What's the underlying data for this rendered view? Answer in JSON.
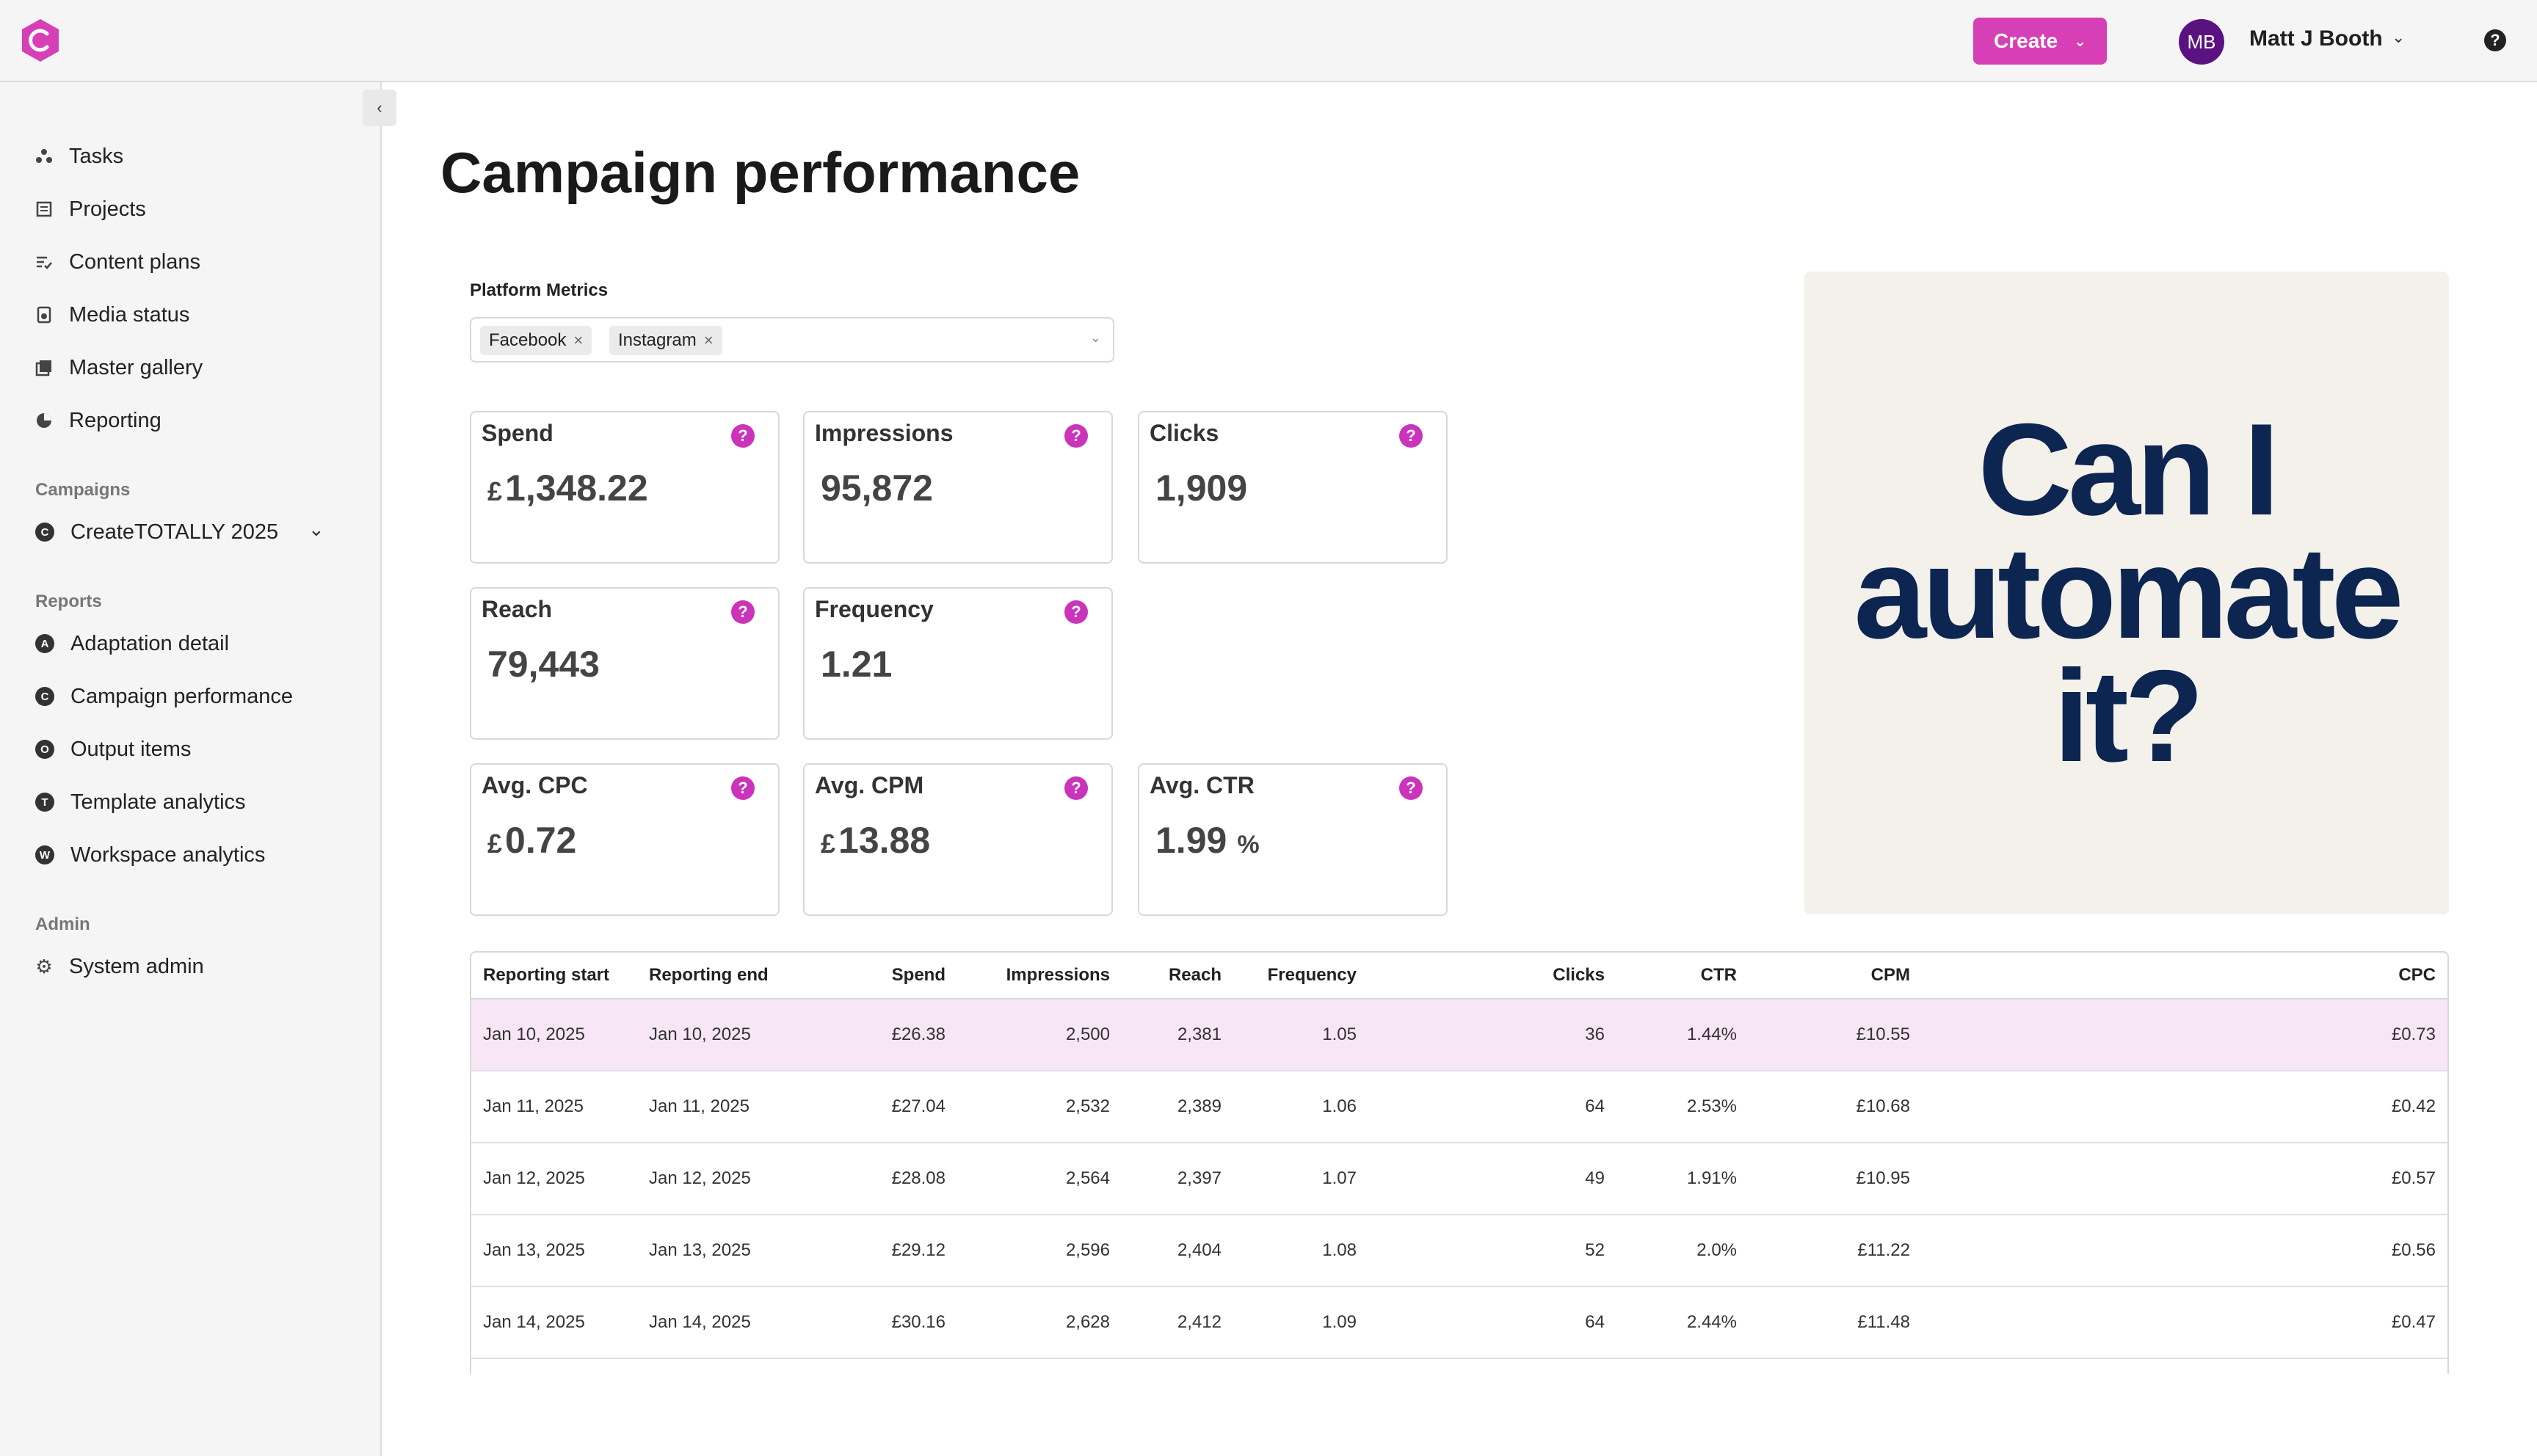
{
  "header": {
    "create_label": "Create",
    "user_initials": "MB",
    "user_name": "Matt J Booth"
  },
  "sidebar": {
    "items": [
      {
        "label": "Tasks",
        "icon": "tasks-icon"
      },
      {
        "label": "Projects",
        "icon": "projects-icon"
      },
      {
        "label": "Content plans",
        "icon": "content-plans-icon"
      },
      {
        "label": "Media status",
        "icon": "media-status-icon"
      },
      {
        "label": "Master gallery",
        "icon": "gallery-icon"
      },
      {
        "label": "Reporting",
        "icon": "reporting-icon"
      }
    ],
    "campaigns_label": "Campaigns",
    "campaign": {
      "letter": "C",
      "label": "CreateTOTALLY 2025"
    },
    "reports_label": "Reports",
    "reports": [
      {
        "letter": "A",
        "label": "Adaptation detail"
      },
      {
        "letter": "C",
        "label": "Campaign performance"
      },
      {
        "letter": "O",
        "label": "Output items"
      },
      {
        "letter": "T",
        "label": "Template analytics"
      },
      {
        "letter": "W",
        "label": "Workspace analytics"
      }
    ],
    "admin_label": "Admin",
    "admin_item": {
      "label": "System admin",
      "icon": "gear-icon"
    }
  },
  "main": {
    "title": "Campaign performance",
    "platform_metrics_label": "Platform Metrics",
    "platforms": [
      "Facebook",
      "Instagram"
    ],
    "metrics": [
      {
        "title": "Spend",
        "currency": "£",
        "value": "1,348.22",
        "suffix": ""
      },
      {
        "title": "Impressions",
        "currency": "",
        "value": "95,872",
        "suffix": ""
      },
      {
        "title": "Clicks",
        "currency": "",
        "value": "1,909",
        "suffix": ""
      },
      {
        "title": "Reach",
        "currency": "",
        "value": "79,443",
        "suffix": ""
      },
      {
        "title": "Frequency",
        "currency": "",
        "value": "1.21",
        "suffix": ""
      },
      {
        "title": "Avg. CPC",
        "currency": "£",
        "value": "0.72",
        "suffix": ""
      },
      {
        "title": "Avg. CPM",
        "currency": "£",
        "value": "13.88",
        "suffix": ""
      },
      {
        "title": "Avg. CTR",
        "currency": "",
        "value": "1.99",
        "suffix": "%"
      }
    ],
    "promo": {
      "lines": [
        "Can I",
        "automate",
        "it?"
      ]
    }
  },
  "table": {
    "headers": [
      "Reporting start",
      "Reporting end",
      "Spend",
      "Impressions",
      "Reach",
      "Frequency",
      "Clicks",
      "CTR",
      "CPM",
      "CPC"
    ],
    "rows": [
      [
        "Jan 10, 2025",
        "Jan 10, 2025",
        "£26.38",
        "2,500",
        "2,381",
        "1.05",
        "36",
        "1.44%",
        "£10.55",
        "£0.73"
      ],
      [
        "Jan 11, 2025",
        "Jan 11, 2025",
        "£27.04",
        "2,532",
        "2,389",
        "1.06",
        "64",
        "2.53%",
        "£10.68",
        "£0.42"
      ],
      [
        "Jan 12, 2025",
        "Jan 12, 2025",
        "£28.08",
        "2,564",
        "2,397",
        "1.07",
        "49",
        "1.91%",
        "£10.95",
        "£0.57"
      ],
      [
        "Jan 13, 2025",
        "Jan 13, 2025",
        "£29.12",
        "2,596",
        "2,404",
        "1.08",
        "52",
        "2.0%",
        "£11.22",
        "£0.56"
      ],
      [
        "Jan 14, 2025",
        "Jan 14, 2025",
        "£30.16",
        "2,628",
        "2,412",
        "1.09",
        "64",
        "2.44%",
        "£11.48",
        "£0.47"
      ]
    ]
  },
  "colors": {
    "accent": "#d63fb6",
    "help_icon": "#cc33bb",
    "highlight_row": "#f7e7f6",
    "promo_bg": "#f4f1eb",
    "promo_text": "#0c2551",
    "avatar": "#5b1281"
  }
}
